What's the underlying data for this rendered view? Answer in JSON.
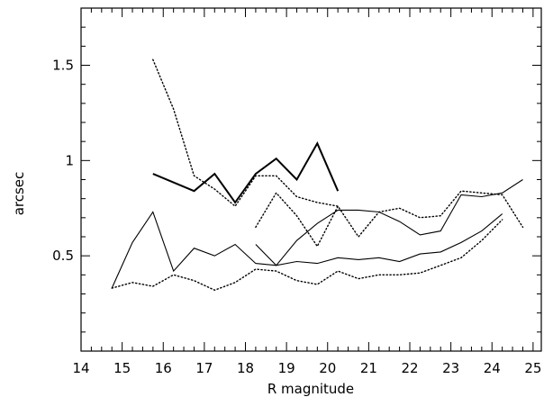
{
  "chart_data": {
    "type": "line",
    "xlabel": "R magnitude",
    "ylabel": "arcsec",
    "xlim": [
      14,
      25.2
    ],
    "ylim": [
      0,
      1.8
    ],
    "grid": false,
    "x_ticks": [
      14,
      15,
      16,
      17,
      18,
      19,
      20,
      21,
      22,
      23,
      24,
      25
    ],
    "x_tick_labels": [
      "14",
      "15",
      "16",
      "17",
      "18",
      "19",
      "20",
      "21",
      "22",
      "23",
      "24",
      "25"
    ],
    "y_ticks": [
      0.5,
      1,
      1.5
    ],
    "y_tick_labels": [
      "0.5",
      "1",
      "1.5"
    ],
    "series": [
      {
        "style": "solid-bold",
        "x": [
          15.75,
          16.75,
          17.25,
          17.75,
          18.25,
          18.75,
          19.25,
          19.75,
          20.25
        ],
        "y": [
          0.93,
          0.84,
          0.93,
          0.78,
          0.93,
          1.01,
          0.9,
          1.09,
          0.84
        ]
      },
      {
        "style": "dotted",
        "x": [
          15.75,
          16.25,
          16.75,
          17.25,
          17.75,
          18.25,
          18.75,
          19.25,
          19.75,
          20.25
        ],
        "y": [
          1.53,
          1.27,
          0.92,
          0.85,
          0.76,
          0.92,
          0.92,
          0.81,
          0.78,
          0.76
        ]
      },
      {
        "style": "solid",
        "x": [
          14.75,
          15.25,
          15.75,
          16.25,
          16.75,
          17.25,
          17.75,
          18.25,
          18.75,
          19.25,
          19.75,
          20.25,
          20.75,
          21.25,
          21.75,
          22.25,
          22.75,
          23.25,
          23.75,
          24.25,
          24.75
        ],
        "y": [
          0.33,
          0.57,
          0.73,
          0.42,
          0.54,
          0.5,
          0.56,
          0.46,
          0.45,
          0.58,
          0.67,
          0.74,
          0.74,
          0.73,
          0.68,
          0.61,
          0.63,
          0.82,
          0.81,
          0.83,
          0.9
        ]
      },
      {
        "style": "solid",
        "x": [
          18.25,
          18.75,
          19.25,
          19.75,
          20.25,
          20.75,
          21.25,
          21.75,
          22.25,
          22.75,
          23.25,
          23.75,
          24.25
        ],
        "y": [
          0.56,
          0.45,
          0.47,
          0.46,
          0.49,
          0.48,
          0.49,
          0.47,
          0.51,
          0.52,
          0.57,
          0.63,
          0.72
        ]
      },
      {
        "style": "dotted",
        "x": [
          18.25,
          18.75,
          19.25,
          19.75,
          20.25,
          20.75,
          21.25,
          21.75,
          22.25,
          22.75,
          23.25,
          23.75,
          24.25,
          24.75
        ],
        "y": [
          0.65,
          0.83,
          0.71,
          0.55,
          0.76,
          0.6,
          0.73,
          0.75,
          0.7,
          0.71,
          0.84,
          0.83,
          0.82,
          0.65
        ]
      },
      {
        "style": "dotted",
        "x": [
          14.75,
          15.25,
          15.75,
          16.25,
          16.75,
          17.25,
          17.75,
          18.25,
          18.75,
          19.25,
          19.75,
          20.25,
          20.75,
          21.25,
          21.75,
          22.25,
          22.75,
          23.25,
          23.75,
          24.25
        ],
        "y": [
          0.33,
          0.36,
          0.34,
          0.4,
          0.37,
          0.32,
          0.36,
          0.43,
          0.42,
          0.37,
          0.35,
          0.42,
          0.38,
          0.4,
          0.4,
          0.41,
          0.45,
          0.49,
          0.58,
          0.69
        ]
      }
    ]
  }
}
